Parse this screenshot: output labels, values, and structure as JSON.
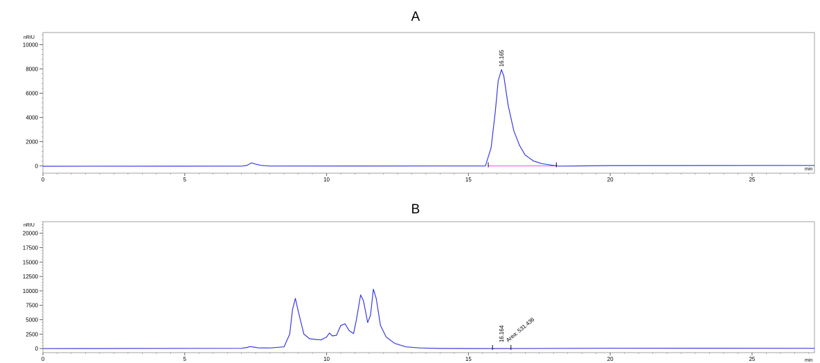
{
  "chart_data": [
    {
      "type": "line",
      "title": "A",
      "ylabel": "nRIU",
      "xlabel": "min",
      "xlim": [
        0,
        27.2
      ],
      "ylim": [
        -600,
        11000
      ],
      "x_ticks": [
        0,
        5,
        10,
        15,
        20,
        25
      ],
      "y_ticks": [
        0,
        2000,
        4000,
        6000,
        8000,
        10000
      ],
      "trace_color": "#3a3ae0",
      "baseline_color": "#ff44ff",
      "series": [
        {
          "x": [
            0,
            7.0,
            7.2,
            7.35,
            7.5,
            7.7,
            8.0,
            15.6,
            15.8,
            15.95,
            16.05,
            16.165,
            16.25,
            16.4,
            16.6,
            16.8,
            17.0,
            17.3,
            17.6,
            18.0,
            18.2,
            19.0,
            20.0,
            27.2
          ],
          "y": [
            -30,
            -20,
            50,
            250,
            150,
            40,
            -10,
            0,
            1500,
            4500,
            7000,
            7950,
            7400,
            5000,
            2900,
            1700,
            900,
            400,
            180,
            40,
            -20,
            0,
            30,
            40
          ]
        }
      ],
      "baseline": {
        "x": [
          15.7,
          18.1
        ],
        "y": [
          0,
          0
        ]
      },
      "markers": [
        15.7,
        18.1
      ],
      "annotations": [
        {
          "x": 16.165,
          "y": 7950,
          "text": "16.165"
        }
      ]
    },
    {
      "type": "line",
      "title": "B",
      "ylabel": "nRIU",
      "xlabel": "min",
      "xlim": [
        0,
        27.2
      ],
      "ylim": [
        -700,
        22000
      ],
      "x_ticks": [
        0,
        5,
        10,
        15,
        20,
        25
      ],
      "y_ticks": [
        0,
        2500,
        5000,
        7500,
        10000,
        12500,
        15000,
        17500,
        20000
      ],
      "trace_color": "#3a3ae0",
      "baseline_color": "#ff44ff",
      "series": [
        {
          "x": [
            0,
            7.0,
            7.2,
            7.3,
            7.45,
            7.6,
            8.0,
            8.5,
            8.7,
            8.8,
            8.9,
            9.0,
            9.2,
            9.4,
            9.6,
            9.8,
            10.0,
            10.1,
            10.2,
            10.35,
            10.5,
            10.65,
            10.8,
            10.95,
            11.05,
            11.2,
            11.3,
            11.45,
            11.55,
            11.65,
            11.75,
            11.9,
            12.1,
            12.4,
            12.8,
            13.3,
            14.0,
            15.0,
            16.0,
            20.0,
            27.2
          ],
          "y": [
            0,
            50,
            200,
            350,
            250,
            120,
            100,
            300,
            2500,
            6800,
            8700,
            6500,
            2500,
            1700,
            1600,
            1500,
            2000,
            2700,
            2200,
            2300,
            4000,
            4300,
            3100,
            2600,
            5000,
            9300,
            8300,
            4500,
            5800,
            10300,
            8700,
            4000,
            2000,
            900,
            300,
            100,
            20,
            10,
            0,
            60,
            40
          ]
        }
      ],
      "baseline": {
        "x": [
          15.85,
          16.5
        ],
        "y": [
          0,
          0
        ]
      },
      "markers": [
        15.85,
        16.5
      ],
      "annotations": [
        {
          "x": 16.164,
          "y": 600,
          "text": "16.164"
        },
        {
          "x": 16.3,
          "y": 600,
          "text": "Area: 531.436"
        }
      ]
    }
  ]
}
